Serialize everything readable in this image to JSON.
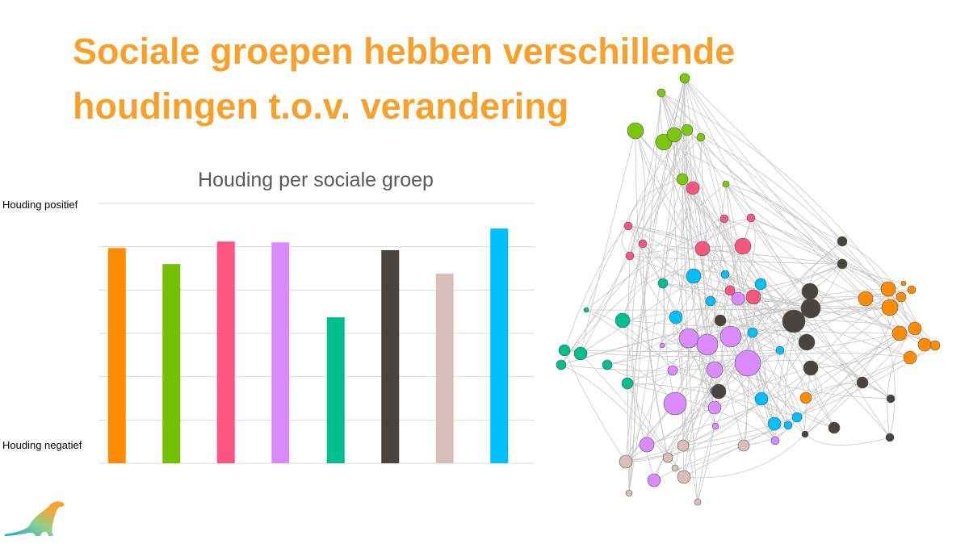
{
  "slide": {
    "title_line1": "Sociale groepen hebben verschillende",
    "title_line2": "houdingen t.o.v. verandering"
  },
  "chart_data": {
    "type": "bar",
    "title": "Houding per sociale groep",
    "xlabel": "",
    "ylabel": "",
    "y_top_label": "Houding positief",
    "y_bottom_label": "Houding negatief",
    "categories": [
      "",
      "",
      "",
      "",
      "",
      "",
      "",
      ""
    ],
    "values": [
      4.97,
      4.6,
      5.12,
      5.1,
      3.37,
      4.92,
      4.38,
      5.42
    ],
    "colors": [
      "#ff8c00",
      "#73bf00",
      "#ff5580",
      "#d98aff",
      "#00bf8f",
      "#4a443f",
      "#d8bfbb",
      "#00bfff"
    ],
    "ylim": [
      0,
      6
    ],
    "grid": true,
    "legend": "none"
  },
  "network": {
    "group_colors": [
      "#7ac70c",
      "#f5577f",
      "#00bfff",
      "#d98aff",
      "#4a443f",
      "#ff8c00",
      "#00bf8f",
      "#d8bfbb"
    ],
    "edge_color": "#c8c8c8"
  },
  "colors": {
    "title": "#f7a02c",
    "chart_title": "#595959",
    "grid": "#d9d9d9"
  }
}
